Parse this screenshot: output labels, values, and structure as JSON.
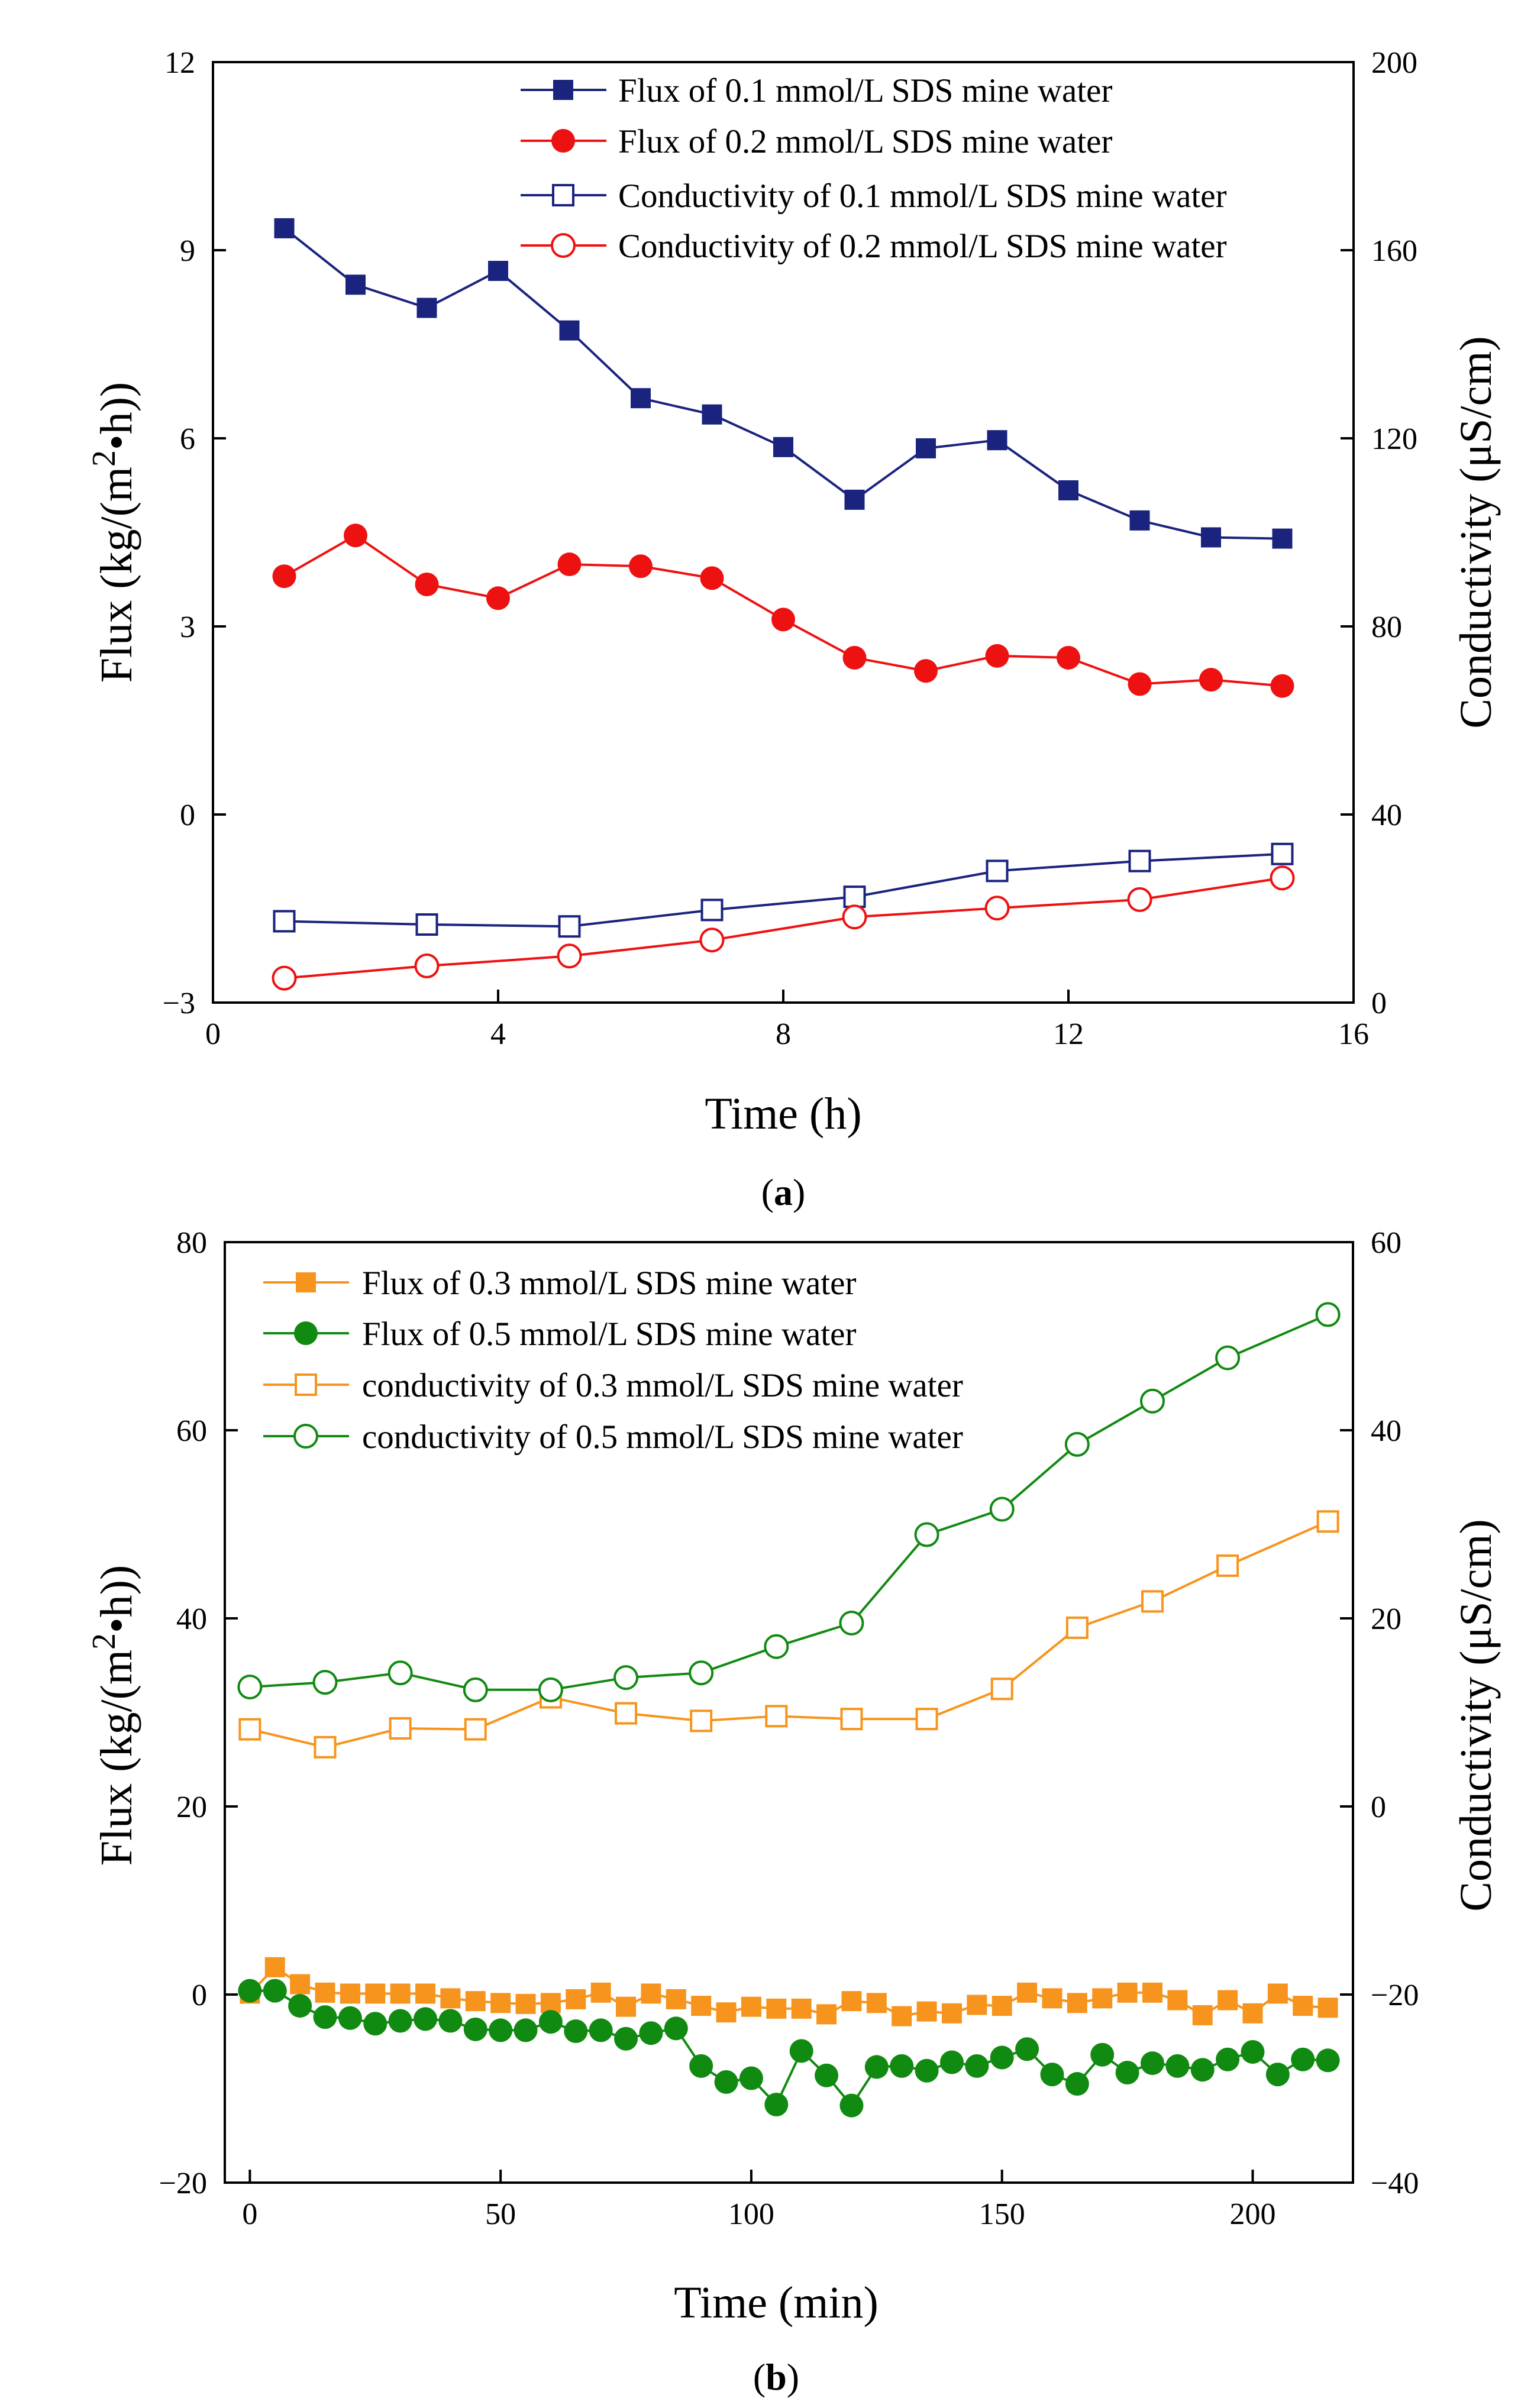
{
  "chart_data": [
    {
      "type": "line",
      "panel_label": "(a)",
      "panel_letter": "a",
      "xlabel": "Time  (h)",
      "ylabel": "Flux  (kg/(m²•h))",
      "y2label": "Conductivity  (μS/cm)",
      "xlim": [
        0,
        16
      ],
      "ylim": [
        -3,
        12
      ],
      "y2lim": [
        0,
        200
      ],
      "xticks": [
        0,
        4,
        8,
        12,
        16
      ],
      "xtick_labels": [
        "0",
        "4",
        "8",
        "12",
        "16"
      ],
      "yticks": [
        -3,
        0,
        3,
        6,
        9,
        12
      ],
      "ytick_labels": [
        "−3",
        "0",
        "3",
        "6",
        "9",
        "12"
      ],
      "y2ticks": [
        0,
        40,
        80,
        120,
        160,
        200
      ],
      "y2tick_labels": [
        "0",
        "40",
        "80",
        "120",
        "160",
        "200"
      ],
      "legend_position": "top-right",
      "series": [
        {
          "name": "Flux of 0.1 mmol/L SDS mine water",
          "axis": "left",
          "color": "#1a237e",
          "marker": "square",
          "filled": true,
          "x": [
            1,
            2,
            3,
            4,
            5,
            6,
            7,
            8,
            9,
            10,
            11,
            12,
            13,
            14,
            15
          ],
          "y": [
            9.35,
            8.45,
            8.08,
            8.67,
            7.72,
            6.64,
            6.38,
            5.86,
            5.02,
            5.84,
            5.97,
            5.17,
            4.69,
            4.42,
            4.4
          ]
        },
        {
          "name": "Flux of 0.2 mmol/L SDS mine water",
          "axis": "left",
          "color": "#ee1111",
          "marker": "circle",
          "filled": true,
          "x": [
            1,
            2,
            3,
            4,
            5,
            6,
            7,
            8,
            9,
            10,
            11,
            12,
            13,
            14,
            15
          ],
          "y": [
            3.8,
            4.45,
            3.67,
            3.45,
            3.99,
            3.96,
            3.77,
            3.11,
            2.5,
            2.29,
            2.53,
            2.5,
            2.08,
            2.15,
            2.05
          ]
        },
        {
          "name": "Conductivity of 0.1 mmol/L SDS mine water",
          "axis": "right",
          "color": "#1a237e",
          "marker": "square",
          "filled": false,
          "x": [
            1,
            3,
            5,
            7,
            9,
            11,
            13,
            15
          ],
          "y": [
            17.3,
            16.6,
            16.2,
            19.7,
            22.5,
            28.0,
            30.1,
            31.6
          ]
        },
        {
          "name": "Conductivity of 0.2 mmol/L SDS mine water",
          "axis": "right",
          "color": "#ee1111",
          "marker": "circle",
          "filled": false,
          "x": [
            1,
            3,
            5,
            7,
            9,
            11,
            13,
            15
          ],
          "y": [
            5.2,
            7.8,
            9.9,
            13.3,
            18.2,
            20.1,
            21.9,
            26.5
          ]
        }
      ]
    },
    {
      "type": "line",
      "panel_label": "(b)",
      "panel_letter": "b",
      "xlabel": "Time  (min)",
      "ylabel": "Flux  (kg/(m²•h))",
      "y2label": "Conductivity  (μS/cm)",
      "xlim": [
        -5,
        220
      ],
      "ylim": [
        -20,
        80
      ],
      "y2lim": [
        -40,
        60
      ],
      "xticks": [
        0,
        50,
        100,
        150,
        200
      ],
      "xtick_labels": [
        "0",
        "50",
        "100",
        "150",
        "200"
      ],
      "yticks": [
        -20,
        0,
        20,
        40,
        60,
        80
      ],
      "ytick_labels": [
        "−20",
        "0",
        "20",
        "40",
        "60",
        "80"
      ],
      "y2ticks": [
        -40,
        -20,
        0,
        20,
        40,
        60
      ],
      "y2tick_labels": [
        "−40",
        "−20",
        "0",
        "20",
        "40",
        "60"
      ],
      "legend_position": "top-left",
      "series": [
        {
          "name": "Flux of 0.3 mmol/L SDS mine water",
          "axis": "left",
          "color": "#f7941d",
          "marker": "square",
          "filled": true,
          "x": [
            0,
            5,
            10,
            15,
            20,
            25,
            30,
            35,
            40,
            45,
            50,
            55,
            60,
            65,
            70,
            75,
            80,
            85,
            90,
            95,
            100,
            105,
            110,
            115,
            120,
            125,
            130,
            135,
            140,
            145,
            150,
            155,
            160,
            165,
            170,
            175,
            180,
            185,
            190,
            195,
            200,
            205,
            210,
            215
          ],
          "y": [
            0.1,
            2.9,
            1.1,
            0.2,
            0.1,
            0.1,
            0.1,
            0.1,
            -0.4,
            -0.7,
            -0.9,
            -1.0,
            -0.9,
            -0.5,
            0.2,
            -1.3,
            0.1,
            -0.5,
            -1.2,
            -1.9,
            -1.3,
            -1.5,
            -1.5,
            -2.1,
            -0.7,
            -0.9,
            -2.3,
            -1.8,
            -2.0,
            -1.1,
            -1.2,
            0.2,
            -0.4,
            -0.9,
            -0.4,
            0.2,
            0.2,
            -0.6,
            -2.2,
            -0.6,
            -2.0,
            0.1,
            -1.2,
            -1.4
          ]
        },
        {
          "name": "Flux of 0.5 mmol/L SDS mine water",
          "axis": "left",
          "color": "#118a11",
          "marker": "circle",
          "filled": true,
          "x": [
            0,
            5,
            10,
            15,
            20,
            25,
            30,
            35,
            40,
            45,
            50,
            55,
            60,
            65,
            70,
            75,
            80,
            85,
            90,
            95,
            100,
            105,
            110,
            115,
            120,
            125,
            130,
            135,
            140,
            145,
            150,
            155,
            160,
            165,
            170,
            175,
            180,
            185,
            190,
            195,
            200,
            205,
            210,
            215
          ],
          "y": [
            0.4,
            0.4,
            -1.2,
            -2.4,
            -2.5,
            -3.1,
            -2.8,
            -2.6,
            -2.8,
            -3.7,
            -3.8,
            -3.8,
            -2.9,
            -3.9,
            -3.8,
            -4.7,
            -4.1,
            -3.6,
            -7.6,
            -9.3,
            -8.9,
            -11.7,
            -6.0,
            -8.6,
            -11.8,
            -7.7,
            -7.6,
            -8.1,
            -7.2,
            -7.6,
            -6.7,
            -5.8,
            -8.5,
            -9.5,
            -6.4,
            -8.3,
            -7.3,
            -7.6,
            -8.0,
            -6.9,
            -6.1,
            -8.5,
            -6.9,
            -7.0
          ]
        },
        {
          "name": "conductivity of 0.3 mmol/L SDS mine water",
          "axis": "right",
          "color": "#f7941d",
          "marker": "square",
          "filled": false,
          "x": [
            0,
            15,
            30,
            45,
            60,
            75,
            90,
            105,
            120,
            135,
            150,
            165,
            180,
            195,
            215
          ],
          "y": [
            8.2,
            6.3,
            8.3,
            8.2,
            11.6,
            9.9,
            9.1,
            9.6,
            9.3,
            9.3,
            12.5,
            19.0,
            21.8,
            25.6,
            30.3
          ]
        },
        {
          "name": "conductivity of 0.5 mmol/L SDS mine water",
          "axis": "right",
          "color": "#118a11",
          "marker": "circle",
          "filled": false,
          "x": [
            0,
            15,
            30,
            45,
            60,
            75,
            90,
            105,
            120,
            135,
            150,
            165,
            180,
            195,
            215
          ],
          "y": [
            12.7,
            13.2,
            14.2,
            12.4,
            12.4,
            13.7,
            14.2,
            17.0,
            19.5,
            28.9,
            31.6,
            38.5,
            43.1,
            47.7,
            52.3
          ]
        }
      ]
    }
  ]
}
